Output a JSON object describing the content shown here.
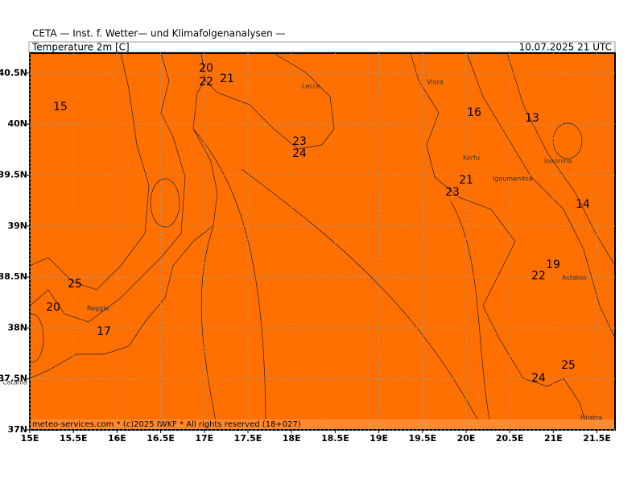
{
  "header": {
    "title": "CETA — Inst. f. Wetter— und Klimafolgenanalysen —",
    "variable": "Temperature 2m [C]",
    "valid_time": "10.07.2025 21 UTC"
  },
  "map": {
    "lon_ticks": [
      {
        "value": 15,
        "label": "15E"
      },
      {
        "value": 15.5,
        "label": "15.5E"
      },
      {
        "value": 16,
        "label": "16E"
      },
      {
        "value": 16.5,
        "label": "16.5E"
      },
      {
        "value": 17,
        "label": "17E"
      },
      {
        "value": 17.5,
        "label": "17.5E"
      },
      {
        "value": 18,
        "label": "18E"
      },
      {
        "value": 18.5,
        "label": "18.5E"
      },
      {
        "value": 19,
        "label": "19E"
      },
      {
        "value": 19.5,
        "label": "19.5E"
      },
      {
        "value": 20,
        "label": "20E"
      },
      {
        "value": 20.5,
        "label": "20.5E"
      },
      {
        "value": 21,
        "label": "21E"
      },
      {
        "value": 21.5,
        "label": "21.5E"
      }
    ],
    "lat_ticks": [
      {
        "value": 37,
        "label": "37N"
      },
      {
        "value": 37.5,
        "label": "37.5N"
      },
      {
        "value": 38,
        "label": "38N"
      },
      {
        "value": 38.5,
        "label": "38.5N"
      },
      {
        "value": 39,
        "label": "39N"
      },
      {
        "value": 39.5,
        "label": "39.5N"
      },
      {
        "value": 40,
        "label": "40N"
      },
      {
        "value": 40.5,
        "label": "40.5N"
      }
    ],
    "contour_labels": [
      20,
      22,
      21,
      15,
      23,
      24,
      16,
      13,
      21,
      23,
      14,
      19,
      22,
      25,
      20,
      17,
      24,
      25
    ],
    "places": [
      "Vlora",
      "Lecce",
      "Korfu",
      "Igoumenitsa",
      "Ioannina",
      "Astakos",
      "Filiatra",
      "Reggio",
      "Catania"
    ]
  },
  "footer": "meteo-services.com * (c)2025 IWKF * All rights reserved (18+027)"
}
